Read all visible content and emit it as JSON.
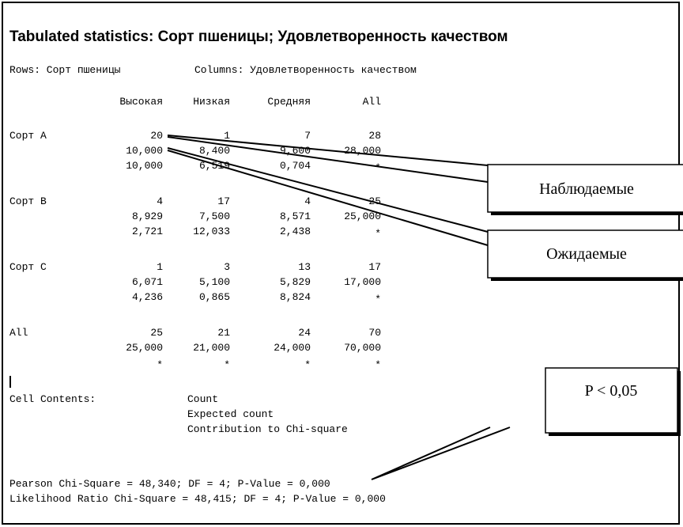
{
  "header": {
    "title": "Tabulated statistics: Сорт пшеницы; Удовлетворенность качеством"
  },
  "subheader": {
    "rows": "Rows: Сорт пшеницы",
    "columns": "Columns: Удовлетворенность качеством"
  },
  "table": {
    "columns": [
      "Высокая",
      "Низкая",
      "Средняя",
      "All"
    ],
    "rows": [
      {
        "label": "Сорт A",
        "lines": [
          [
            "20",
            "1",
            "7",
            "28"
          ],
          [
            "10,000",
            "8,400",
            "9,600",
            "28,000"
          ],
          [
            "10,000",
            "6,519",
            "0,704",
            "*"
          ]
        ]
      },
      {
        "label": "Сорт B",
        "lines": [
          [
            "4",
            "17",
            "4",
            "25"
          ],
          [
            "8,929",
            "7,500",
            "8,571",
            "25,000"
          ],
          [
            "2,721",
            "12,033",
            "2,438",
            "*"
          ]
        ]
      },
      {
        "label": "Сорт C",
        "lines": [
          [
            "1",
            "3",
            "13",
            "17"
          ],
          [
            "6,071",
            "5,100",
            "5,829",
            "17,000"
          ],
          [
            "4,236",
            "0,865",
            "8,824",
            "*"
          ]
        ]
      },
      {
        "label": "All",
        "lines": [
          [
            "25",
            "21",
            "24",
            "70"
          ],
          [
            "25,000",
            "21,000",
            "24,000",
            "70,000"
          ],
          [
            "*",
            "*",
            "*",
            "*"
          ]
        ]
      }
    ]
  },
  "cell_contents": {
    "label": "Cell Contents:",
    "items": [
      "Count",
      "Expected count",
      "Contribution to Chi-square"
    ]
  },
  "results": [
    "Pearson Chi-Square = 48,340; DF = 4; P-Value = 0,000",
    "Likelihood Ratio Chi-Square = 48,415; DF = 4; P-Value = 0,000"
  ],
  "callouts": [
    "Наблюдаемые",
    "Ожидаемые",
    "P < 0,05"
  ]
}
